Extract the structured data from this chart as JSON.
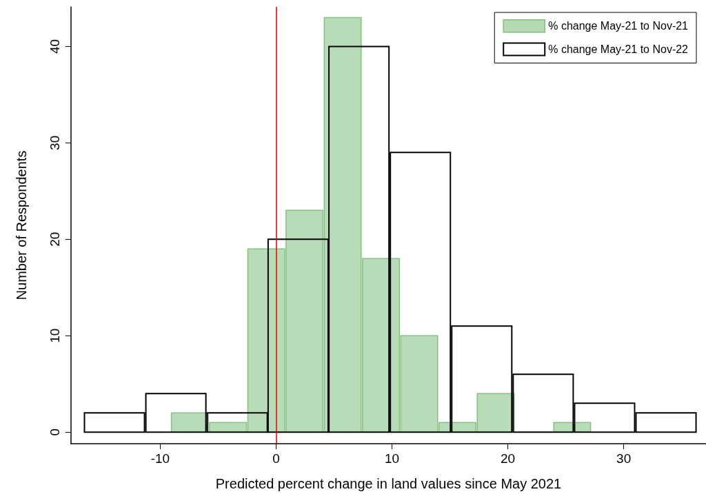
{
  "chart_data": {
    "type": "bar",
    "xlabel": "Predicted percent change in land values since May 2021",
    "ylabel": "Number of Respondents",
    "xlim": [
      -17.7,
      37.1
    ],
    "xticks": [
      -10,
      0,
      10,
      20,
      30
    ],
    "ylim": [
      -1.2,
      44.1
    ],
    "yticks": [
      0,
      10,
      20,
      30,
      40
    ],
    "grid": false,
    "legend": "top right",
    "series": [
      {
        "name": "% change May-21 to Nov-21",
        "color": "#b5dab4",
        "x": [
          -7.45,
          -4.15,
          -0.85,
          2.45,
          5.75,
          9.05,
          12.35,
          15.65,
          18.95,
          22.25,
          25.55
        ],
        "values": [
          2,
          1,
          19,
          23,
          43,
          18,
          10,
          1,
          4,
          0,
          1
        ]
      },
      {
        "name": "% change May-21 to Nov-22",
        "color": "#000000",
        "x": [
          -13.95,
          -8.65,
          -3.35,
          1.9,
          7.15,
          12.45,
          17.75,
          23.05,
          28.35,
          33.65
        ],
        "values": [
          2,
          4,
          2,
          20,
          40,
          29,
          11,
          6,
          3,
          2
        ]
      }
    ],
    "ref_lines": [
      {
        "axis": "x",
        "value": 0,
        "color": "#e00000"
      }
    ]
  }
}
